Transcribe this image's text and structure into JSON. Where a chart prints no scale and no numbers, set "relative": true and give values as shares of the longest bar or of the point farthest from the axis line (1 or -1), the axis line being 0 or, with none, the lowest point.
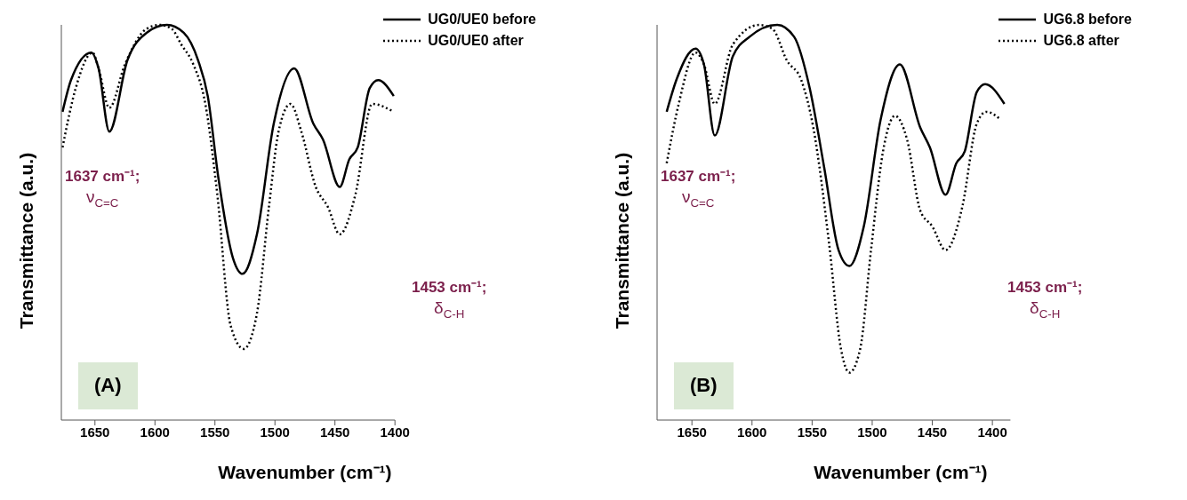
{
  "chart_data": [
    {
      "type": "line",
      "relative": true,
      "xlabel": "Wavenumber (cm⁻¹)",
      "ylabel": "Transmittance (a.u.)",
      "xlim": [
        1678,
        1400
      ],
      "xticks": [
        1650,
        1600,
        1550,
        1500,
        1450,
        1400
      ],
      "grid": false,
      "legend": "top right",
      "annotations": [
        "1637 cm⁻¹;\nν$_{C=C}$",
        "1453 cm⁻¹;\nδ$_{C-H}$",
        "(A)"
      ],
      "series": [
        {
          "name": "UG0/UE0 before",
          "color": "#000000",
          "line_style": "solid",
          "x": [
            1677,
            1670,
            1653,
            1647,
            1638,
            1623,
            1607,
            1590,
            1576,
            1564,
            1556,
            1547,
            1535,
            1527,
            1515,
            1501,
            1484,
            1468,
            1460,
            1446,
            1438,
            1431,
            1421,
            1414,
            1401
          ],
          "values": [
            0.78,
            0.86,
            0.93,
            0.89,
            0.73,
            0.91,
            0.98,
            1.0,
            0.98,
            0.91,
            0.82,
            0.61,
            0.41,
            0.37,
            0.47,
            0.75,
            0.89,
            0.75,
            0.71,
            0.59,
            0.66,
            0.69,
            0.84,
            0.86,
            0.82
          ]
        },
        {
          "name": "UG0/UE0 after",
          "color": "#000000",
          "line_style": "dotted",
          "x": [
            1677,
            1666,
            1652,
            1647,
            1638,
            1625,
            1607,
            1596,
            1586,
            1578,
            1568,
            1558,
            1548,
            1537,
            1526,
            1515,
            1505,
            1497,
            1487,
            1478,
            1466,
            1456,
            1446,
            1433,
            1419,
            1401
          ],
          "values": [
            0.69,
            0.84,
            0.93,
            0.89,
            0.79,
            0.9,
            0.99,
            1.0,
            0.99,
            0.95,
            0.9,
            0.8,
            0.57,
            0.24,
            0.18,
            0.27,
            0.54,
            0.73,
            0.8,
            0.73,
            0.59,
            0.54,
            0.47,
            0.57,
            0.8,
            0.78
          ]
        }
      ]
    },
    {
      "type": "line",
      "relative": true,
      "xlabel": "Wavenumber (cm⁻¹)",
      "ylabel": "Transmittance (a.u.)",
      "xlim": [
        1679,
        1385
      ],
      "xticks": [
        1650,
        1600,
        1550,
        1500,
        1450,
        1400
      ],
      "grid": false,
      "legend": "top right",
      "annotations": [
        "1637 cm⁻¹;\nν$_{C=C}$",
        "1453 cm⁻¹;\nδ$_{C-H}$",
        "(B)"
      ],
      "series": [
        {
          "name": "UG6.8 before",
          "color": "#000000",
          "line_style": "solid",
          "x": [
            1671,
            1663,
            1647,
            1640,
            1631,
            1616,
            1602,
            1579,
            1565,
            1552,
            1540,
            1528,
            1519,
            1507,
            1493,
            1477,
            1460,
            1452,
            1439,
            1430,
            1423,
            1413,
            1406,
            1390
          ],
          "values": [
            0.78,
            0.86,
            0.94,
            0.9,
            0.72,
            0.92,
            0.97,
            1.0,
            0.97,
            0.84,
            0.64,
            0.43,
            0.39,
            0.49,
            0.76,
            0.9,
            0.74,
            0.69,
            0.57,
            0.65,
            0.68,
            0.83,
            0.85,
            0.8
          ]
        },
        {
          "name": "UG6.8 after",
          "color": "#000000",
          "line_style": "dotted",
          "x": [
            1671,
            1661,
            1647,
            1640,
            1631,
            1616,
            1594,
            1583,
            1571,
            1559,
            1549,
            1536,
            1526,
            1519,
            1510,
            1501,
            1491,
            1481,
            1471,
            1460,
            1450,
            1439,
            1425,
            1413,
            1405,
            1393
          ],
          "values": [
            0.65,
            0.8,
            0.93,
            0.9,
            0.8,
            0.95,
            1.0,
            0.99,
            0.91,
            0.86,
            0.74,
            0.45,
            0.18,
            0.12,
            0.18,
            0.43,
            0.68,
            0.77,
            0.71,
            0.53,
            0.49,
            0.43,
            0.54,
            0.75,
            0.78,
            0.76
          ]
        }
      ]
    }
  ]
}
